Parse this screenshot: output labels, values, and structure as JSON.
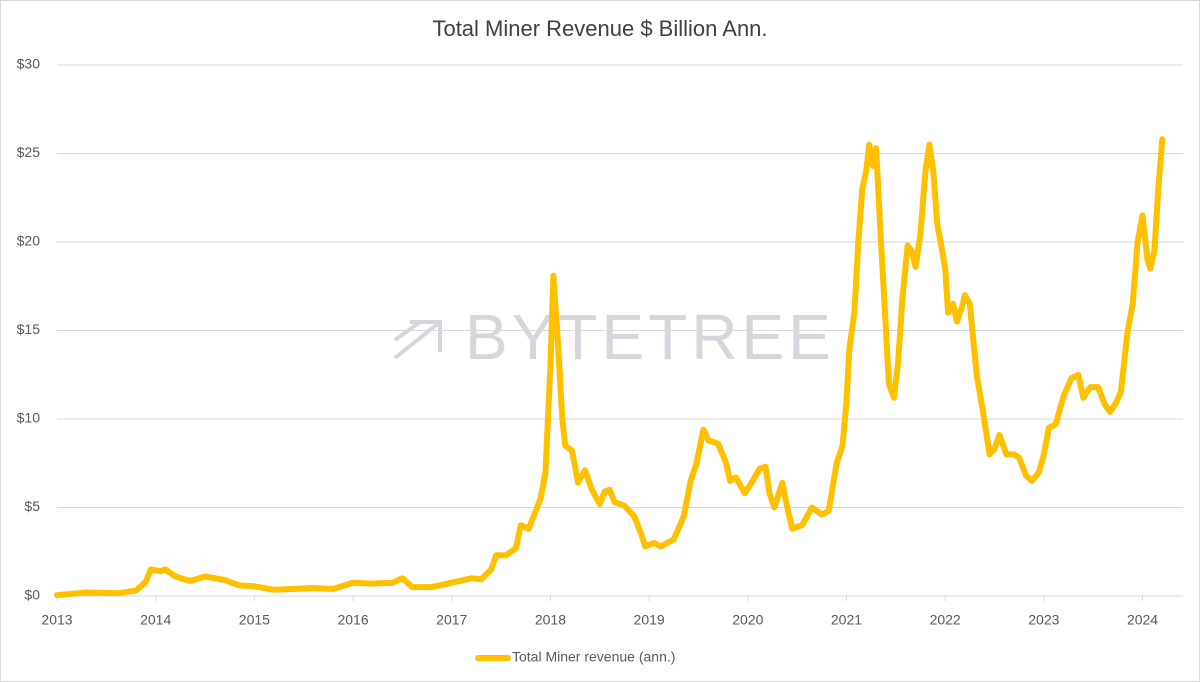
{
  "chart_data": {
    "type": "line",
    "title": "Total Miner Revenue $ Billion Ann.",
    "watermark": "BYTETREE",
    "xlim": [
      2013,
      2024.41
    ],
    "xticks": [
      2013,
      2014,
      2015,
      2016,
      2017,
      2018,
      2019,
      2020,
      2021,
      2022,
      2023,
      2024
    ],
    "ylim": [
      0,
      30
    ],
    "yticks": [
      {
        "value": 0,
        "label": "$0"
      },
      {
        "value": 5,
        "label": "$5"
      },
      {
        "value": 10,
        "label": "$10"
      },
      {
        "value": 15,
        "label": "$15"
      },
      {
        "value": 20,
        "label": "$20"
      },
      {
        "value": 25,
        "label": "$25"
      },
      {
        "value": 30,
        "label": "$30"
      }
    ],
    "grid": true,
    "legend": "bottom",
    "x": [
      2013.0,
      2013.3,
      2013.6,
      2013.8,
      2013.9,
      2013.95,
      2014.05,
      2014.1,
      2014.2,
      2014.35,
      2014.5,
      2014.7,
      2014.85,
      2015.0,
      2015.2,
      2015.4,
      2015.6,
      2015.8,
      2016.0,
      2016.2,
      2016.4,
      2016.5,
      2016.6,
      2016.8,
      2017.0,
      2017.2,
      2017.3,
      2017.4,
      2017.45,
      2017.55,
      2017.65,
      2017.7,
      2017.78,
      2017.9,
      2017.95,
      2018.0,
      2018.03,
      2018.08,
      2018.12,
      2018.15,
      2018.22,
      2018.28,
      2018.35,
      2018.42,
      2018.5,
      2018.55,
      2018.6,
      2018.65,
      2018.75,
      2018.85,
      2018.92,
      2018.96,
      2019.05,
      2019.12,
      2019.25,
      2019.35,
      2019.42,
      2019.48,
      2019.55,
      2019.6,
      2019.7,
      2019.78,
      2019.82,
      2019.88,
      2019.97,
      2020.05,
      2020.12,
      2020.18,
      2020.22,
      2020.27,
      2020.35,
      2020.4,
      2020.45,
      2020.55,
      2020.65,
      2020.75,
      2020.82,
      2020.9,
      2020.96,
      2021.0,
      2021.03,
      2021.08,
      2021.12,
      2021.16,
      2021.2,
      2021.23,
      2021.27,
      2021.3,
      2021.35,
      2021.4,
      2021.43,
      2021.48,
      2021.52,
      2021.57,
      2021.62,
      2021.66,
      2021.7,
      2021.75,
      2021.8,
      2021.84,
      2021.88,
      2021.92,
      2021.97,
      2022.0,
      2022.03,
      2022.08,
      2022.12,
      2022.18,
      2022.2,
      2022.25,
      2022.32,
      2022.38,
      2022.45,
      2022.5,
      2022.55,
      2022.62,
      2022.7,
      2022.75,
      2022.82,
      2022.88,
      2022.95,
      2023.0,
      2023.05,
      2023.12,
      2023.2,
      2023.28,
      2023.35,
      2023.4,
      2023.47,
      2023.55,
      2023.62,
      2023.67,
      2023.73,
      2023.78,
      2023.85,
      2023.9,
      2023.95,
      2024.0,
      2024.05,
      2024.08,
      2024.12,
      2024.16,
      2024.2
    ],
    "series": [
      {
        "name": "Total Miner revenue (ann.)",
        "color": "#ffc000",
        "values": [
          0.05,
          0.2,
          0.15,
          0.3,
          0.8,
          1.5,
          1.4,
          1.5,
          1.1,
          0.85,
          1.1,
          0.9,
          0.6,
          0.55,
          0.35,
          0.4,
          0.45,
          0.4,
          0.75,
          0.7,
          0.75,
          1.0,
          0.5,
          0.5,
          0.75,
          1.0,
          0.95,
          1.5,
          2.3,
          2.3,
          2.7,
          4.0,
          3.8,
          5.5,
          7.0,
          13.0,
          18.1,
          14.0,
          10.0,
          8.5,
          8.2,
          6.4,
          7.1,
          6.0,
          5.2,
          5.9,
          6.0,
          5.3,
          5.1,
          4.5,
          3.5,
          2.8,
          3.0,
          2.8,
          3.2,
          4.5,
          6.5,
          7.5,
          9.4,
          8.8,
          8.6,
          7.5,
          6.5,
          6.7,
          5.8,
          6.5,
          7.2,
          7.3,
          5.8,
          5.0,
          6.4,
          5.0,
          3.8,
          4.0,
          5.0,
          4.6,
          4.8,
          7.5,
          8.5,
          11.0,
          14.0,
          16.0,
          20.0,
          23.0,
          24.0,
          25.5,
          24.3,
          25.3,
          20.0,
          15.0,
          12.0,
          11.2,
          13.0,
          17.0,
          19.8,
          19.5,
          18.6,
          20.5,
          24.0,
          25.5,
          24.0,
          21.0,
          19.5,
          18.5,
          16.0,
          16.5,
          15.5,
          16.5,
          17.0,
          16.5,
          12.5,
          10.5,
          8.0,
          8.3,
          9.1,
          8.0,
          8.0,
          7.8,
          6.8,
          6.5,
          7.0,
          8.0,
          9.5,
          9.7,
          11.3,
          12.3,
          12.5,
          11.2,
          11.8,
          11.8,
          10.8,
          10.4,
          10.9,
          11.5,
          15.0,
          16.5,
          20.0,
          21.5,
          19.0,
          18.5,
          19.5,
          23.0,
          25.8
        ]
      }
    ]
  }
}
